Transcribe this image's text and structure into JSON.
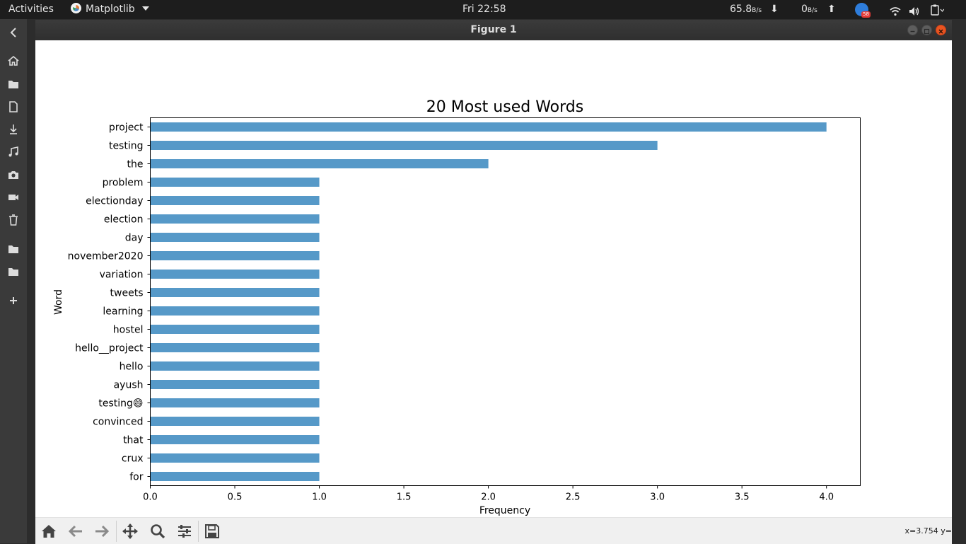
{
  "topbar": {
    "activities": "Activities",
    "app_name": "Matplotlib",
    "clock": "Fri 22:58",
    "net_down_value": "65.8",
    "net_down_unit": "B/s",
    "net_up_value": "0",
    "net_up_unit": "B/s",
    "badge_count": "58"
  },
  "window": {
    "title": "Figure 1"
  },
  "toolbar": {
    "coords": "x=3.754 y="
  },
  "icons": {
    "dock": [
      "home-icon",
      "folder-icon",
      "document-icon",
      "download-icon",
      "music-icon",
      "camera-icon",
      "video-icon",
      "trash-icon",
      "folder-icon",
      "folder-icon",
      "plus-icon"
    ],
    "toolbar": [
      "home-icon",
      "back-arrow-icon",
      "forward-arrow-icon",
      "pan-icon",
      "zoom-icon",
      "configure-icon",
      "save-icon"
    ]
  },
  "chart_data": {
    "type": "bar",
    "orientation": "horizontal",
    "title": "20 Most used Words",
    "xlabel": "Frequency",
    "ylabel": "Word",
    "categories": [
      "project",
      "testing",
      "the",
      "problem",
      "electionday",
      "election",
      "day",
      "november2020",
      "variation",
      "tweets",
      "learning",
      "hostel",
      "hello__project",
      "hello",
      "ayush",
      "testing😄",
      "convinced",
      "that",
      "crux",
      "for"
    ],
    "values": [
      4,
      3,
      2,
      1,
      1,
      1,
      1,
      1,
      1,
      1,
      1,
      1,
      1,
      1,
      1,
      1,
      1,
      1,
      1,
      1
    ],
    "xlim": [
      0,
      4.2
    ],
    "xticks": [
      "0.0",
      "0.5",
      "1.0",
      "1.5",
      "2.0",
      "2.5",
      "3.0",
      "3.5",
      "4.0"
    ],
    "bar_color": "#5699c8",
    "grid": false
  }
}
